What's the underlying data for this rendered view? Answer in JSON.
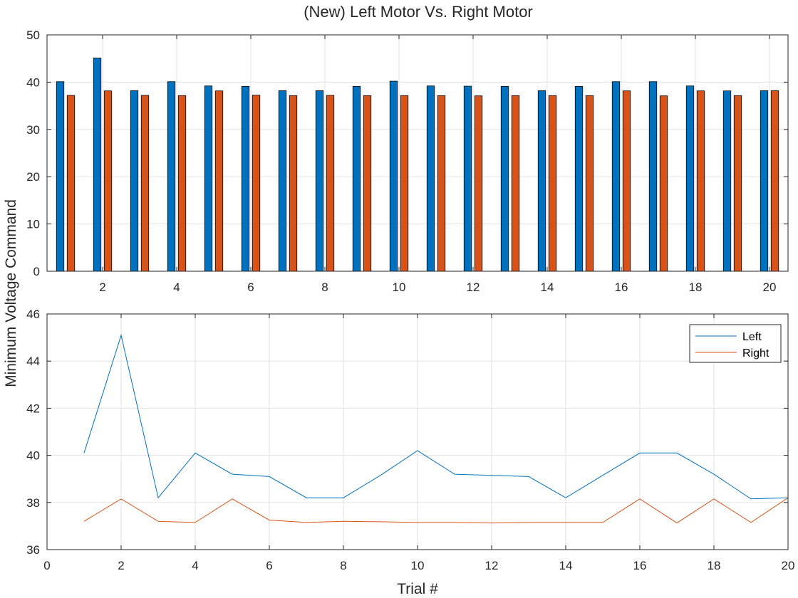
{
  "chart_data": [
    {
      "type": "bar",
      "title": "(New) Left Motor Vs. Right Motor",
      "x": [
        1,
        2,
        3,
        4,
        5,
        6,
        7,
        8,
        9,
        10,
        11,
        12,
        13,
        14,
        15,
        16,
        17,
        18,
        19,
        20
      ],
      "xticks": [
        2,
        4,
        6,
        8,
        10,
        12,
        14,
        16,
        18,
        20
      ],
      "xlim": [
        0.5,
        20.5
      ],
      "ylim": [
        0,
        50
      ],
      "yticks": [
        0,
        10,
        20,
        30,
        40,
        50
      ],
      "grid": true,
      "series": [
        {
          "color": "#0072BD",
          "values": [
            40.1,
            45.1,
            38.2,
            40.1,
            39.2,
            39.1,
            38.2,
            38.2,
            39.1,
            40.2,
            39.2,
            39.15,
            39.1,
            38.2,
            39.1,
            40.1,
            40.1,
            39.2,
            38.15,
            38.2
          ]
        },
        {
          "color": "#D95319",
          "values": [
            37.2,
            38.15,
            37.2,
            37.15,
            38.15,
            37.25,
            37.15,
            37.2,
            37.15,
            37.15,
            37.15,
            37.1,
            37.15,
            37.15,
            37.15,
            38.15,
            37.1,
            38.15,
            37.15,
            38.2
          ]
        }
      ]
    },
    {
      "type": "line",
      "xlabel": "Trial #",
      "xlim": [
        0,
        20
      ],
      "xticks": [
        0,
        2,
        4,
        6,
        8,
        10,
        12,
        14,
        16,
        18,
        20
      ],
      "ylim": [
        36,
        46
      ],
      "yticks": [
        36,
        38,
        40,
        42,
        44,
        46
      ],
      "grid": true,
      "legend_position": "top-right",
      "x": [
        1,
        2,
        3,
        4,
        5,
        6,
        7,
        8,
        9,
        10,
        11,
        12,
        13,
        14,
        15,
        16,
        17,
        18,
        19,
        20
      ],
      "series": [
        {
          "name": "Left",
          "color": "#0072BD",
          "values": [
            40.1,
            45.1,
            38.2,
            40.1,
            39.2,
            39.1,
            38.2,
            38.2,
            39.15,
            40.2,
            39.2,
            39.15,
            39.1,
            38.2,
            39.15,
            40.1,
            40.1,
            39.2,
            38.15,
            38.2
          ]
        },
        {
          "name": "Right",
          "color": "#D95319",
          "values": [
            37.2,
            38.15,
            37.2,
            37.15,
            38.15,
            37.25,
            37.15,
            37.2,
            37.18,
            37.15,
            37.15,
            37.13,
            37.15,
            37.15,
            37.15,
            38.15,
            37.13,
            38.15,
            37.15,
            38.2
          ]
        }
      ]
    }
  ],
  "shared_ylabel": "Minimum Voltage Command"
}
